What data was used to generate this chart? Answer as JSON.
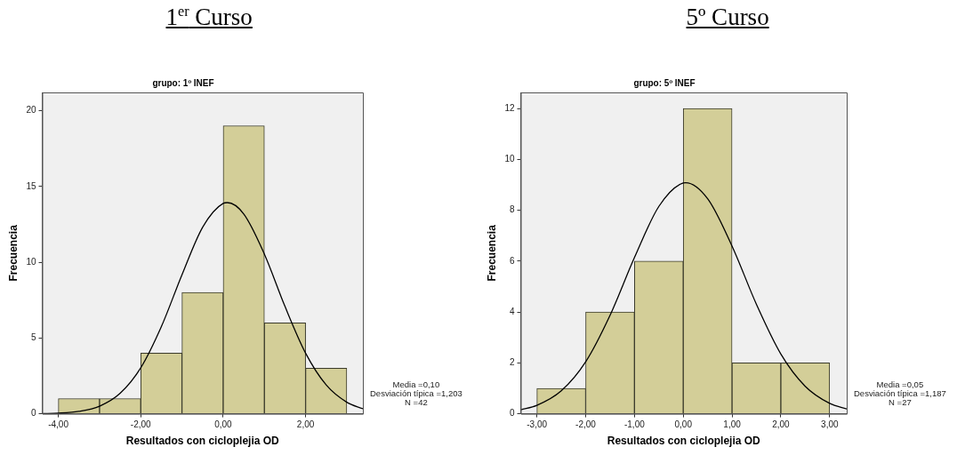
{
  "chart_data": [
    {
      "type": "histogram",
      "title": "1$^{er}$ Curso",
      "subtitle": "grupo: 1º INEF",
      "xlabel": "Resultados con cicloplejia OD",
      "ylabel": "Frecuencia",
      "bins": [
        -4,
        -3,
        -2,
        -1,
        0,
        1,
        2,
        3
      ],
      "series": [
        {
          "color": "#d3ce98",
          "values": [
            1,
            1,
            4,
            8,
            19,
            6,
            3
          ]
        },
        {
          "type": "line",
          "color": "#000000",
          "x": [
            -4.39,
            -4,
            -3.5,
            -3,
            -2.5,
            -2,
            -1.5,
            -1,
            -0.5,
            0,
            0.1,
            0.5,
            1,
            1.5,
            2,
            2.5,
            3,
            3.39
          ],
          "values": [
            0.01,
            0.04,
            0.16,
            0.5,
            1.35,
            3.03,
            5.75,
            9.17,
            12.3,
            13.88,
            13.93,
            13.18,
            10.53,
            7.08,
            4.0,
            1.9,
            0.76,
            0.33
          ]
        }
      ],
      "xlim": [
        -4.39,
        3.39
      ],
      "xticks": [
        {
          "value": -4,
          "label": "-4,00"
        },
        {
          "value": -2,
          "label": "-2,00"
        },
        {
          "value": 0,
          "label": "0,00"
        },
        {
          "value": 2,
          "label": "2,00"
        }
      ],
      "ylim": [
        0,
        21.2
      ],
      "yticks": [
        0,
        5,
        10,
        15,
        20
      ],
      "grid": false,
      "legend": false,
      "marker": "none",
      "annotations": [
        "Media =0,10",
        "Desviación típica =1,203",
        "N =42"
      ]
    },
    {
      "type": "histogram",
      "title": "5º Curso",
      "subtitle": "grupo: 5º INEF",
      "xlabel": "Resultados con cicloplejia OD",
      "ylabel": "Frecuencia",
      "bins": [
        -3,
        -2,
        -1,
        0,
        1,
        2,
        3
      ],
      "series": [
        {
          "color": "#d3ce98",
          "values": [
            1,
            4,
            6,
            12,
            2,
            2
          ]
        },
        {
          "type": "line",
          "color": "#000000",
          "x": [
            -3.33,
            -3,
            -2.5,
            -2,
            -1.5,
            -1,
            -0.5,
            0,
            0.05,
            0.5,
            1,
            1.5,
            2,
            2.5,
            3,
            3.35
          ],
          "values": [
            0.16,
            0.33,
            0.9,
            2.04,
            3.87,
            6.14,
            8.15,
            9.07,
            9.08,
            8.45,
            6.59,
            4.3,
            2.35,
            1.08,
            0.41,
            0.19
          ]
        }
      ],
      "xlim": [
        -3.33,
        3.35
      ],
      "xticks": [
        {
          "value": -3,
          "label": "-3,00"
        },
        {
          "value": -2,
          "label": "-2,00"
        },
        {
          "value": -1,
          "label": "-1,00"
        },
        {
          "value": 0,
          "label": "0,00"
        },
        {
          "value": 1,
          "label": "1,00"
        },
        {
          "value": 2,
          "label": "2,00"
        },
        {
          "value": 3,
          "label": "3,00"
        }
      ],
      "ylim": [
        0,
        12.63
      ],
      "yticks": [
        0,
        2,
        4,
        6,
        8,
        10,
        12
      ],
      "grid": false,
      "legend": false,
      "marker": "none",
      "annotations": [
        "Media =0,05",
        "Desviación típica =1,187",
        "N =27"
      ]
    }
  ]
}
